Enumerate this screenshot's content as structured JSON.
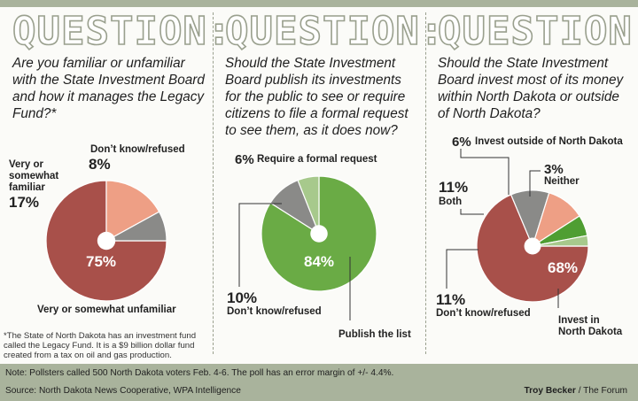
{
  "header_word": "QUESTION:",
  "chart_data": [
    {
      "type": "pie",
      "title": "Are you familiar or unfamiliar with the State Investment Board and how it manages the Legacy Fund?*",
      "slices": [
        {
          "label": "Very or somewhat unfamiliar",
          "value": 75,
          "display": "75%",
          "color": "#a8504a"
        },
        {
          "label": "Very or somewhat familiar",
          "value": 17,
          "display": "17%",
          "color": "#ee9f85"
        },
        {
          "label": "Don't know/refused",
          "value": 8,
          "display": "8%",
          "color": "#8a8a88"
        }
      ]
    },
    {
      "type": "pie",
      "title": "Should the State Investment Board publish its investments for the public to see or require citizens to file a formal request to see them, as it does now?",
      "slices": [
        {
          "label": "Publish the list",
          "value": 84,
          "display": "84%",
          "color": "#6aab45"
        },
        {
          "label": "Don't know/refused",
          "value": 10,
          "display": "10%",
          "color": "#8a8a88"
        },
        {
          "label": "Require a formal request",
          "value": 6,
          "display": "6%",
          "color": "#a7c98c"
        }
      ]
    },
    {
      "type": "pie",
      "title": "Should the State Investment Board invest most of its money within North Dakota or outside of North Dakota?",
      "slices": [
        {
          "label": "Invest in North Dakota",
          "value": 68,
          "display": "68%",
          "color": "#a8504a"
        },
        {
          "label": "Don't know/refused",
          "value": 11,
          "display": "11%",
          "color": "#8a8a88"
        },
        {
          "label": "Both",
          "value": 11,
          "display": "11%",
          "color": "#ee9f85"
        },
        {
          "label": "Invest outside of North Dakota",
          "value": 6,
          "display": "6%",
          "color": "#4f9e32"
        },
        {
          "label": "Neither",
          "value": 3,
          "display": "3%",
          "color": "#a7c98c"
        }
      ]
    }
  ],
  "labels": {
    "p1_dk": "Don’t know/refused",
    "p1_dk_pct": "8%",
    "p1_fam_1": "Very or",
    "p1_fam_2": "somewhat",
    "p1_fam_3": "familiar",
    "p1_fam_pct": "17%",
    "p1_unfam_pct": "75%",
    "p1_unfam": "Very or somewhat unfamiliar",
    "p2_req_pct": "6%",
    "p2_req": "Require a formal request",
    "p2_pub_pct": "84%",
    "p2_dk_pct": "10%",
    "p2_dk": "Don’t know/refused",
    "p2_pub": "Publish the list",
    "p3_out_pct": "6%",
    "p3_out": "Invest outside of North Dakota",
    "p3_nei_pct": "3%",
    "p3_nei": "Neither",
    "p3_both_pct": "11%",
    "p3_both": "Both",
    "p3_in_pct": "68%",
    "p3_dk_pct": "11%",
    "p3_dk": "Don’t know/refused",
    "p3_in_1": "Invest in",
    "p3_in_2": "North Dakota"
  },
  "footnote": "*The State of North Dakota has an investment fund called the Legacy Fund. It is a $9 billion dollar fund created from a tax on oil and gas production.",
  "note": "Note: Pollsters called 500 North Dakota voters Feb. 4-6. The poll has an error margin of +/- 4.4%.",
  "source": "Source: North Dakota News Cooperative, WPA Intelligence",
  "credit_name": "Troy Becker",
  "credit_org": " / The Forum"
}
